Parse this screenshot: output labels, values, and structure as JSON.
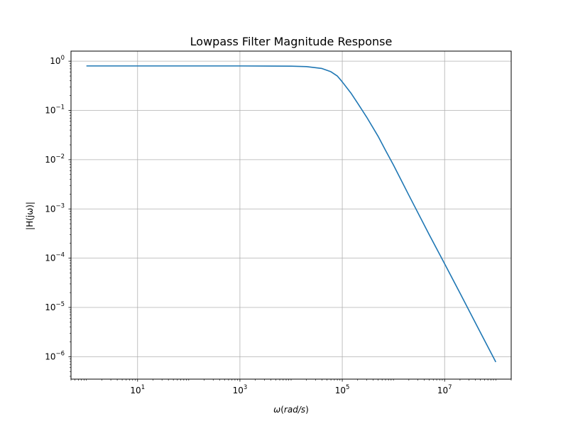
{
  "chart_data": {
    "type": "line",
    "title": "Lowpass Filter Magnitude Response",
    "xlabel": {
      "symbol": "ω",
      "open": "(",
      "unit": "rad/s",
      "close": ")"
    },
    "ylabel": {
      "text": "|H(jω)|"
    },
    "xscale": "log",
    "yscale": "log",
    "xlim": [
      0.5,
      200000000
    ],
    "ylim": [
      3.5e-07,
      1.6
    ],
    "grid": true,
    "x_ticks": [
      {
        "value": 10,
        "base": "10",
        "exp": "1"
      },
      {
        "value": 1000,
        "base": "10",
        "exp": "3"
      },
      {
        "value": 100000,
        "base": "10",
        "exp": "5"
      },
      {
        "value": 10000000,
        "base": "10",
        "exp": "7"
      }
    ],
    "y_ticks": [
      {
        "value": 1,
        "base": "10",
        "exp": "0"
      },
      {
        "value": 0.1,
        "base": "10",
        "exp": "−1"
      },
      {
        "value": 0.01,
        "base": "10",
        "exp": "−2"
      },
      {
        "value": 0.001,
        "base": "10",
        "exp": "−3"
      },
      {
        "value": 0.0001,
        "base": "10",
        "exp": "−4"
      },
      {
        "value": 1e-05,
        "base": "10",
        "exp": "−5"
      },
      {
        "value": 1e-06,
        "base": "10",
        "exp": "−6"
      }
    ],
    "series": [
      {
        "color": "#1f77b4",
        "x": [
          1,
          10,
          100,
          1000,
          10000,
          20000,
          40000,
          60000,
          80000,
          100000,
          150000,
          200000,
          300000,
          500000,
          700000,
          1000000,
          2000000,
          5000000,
          10000000,
          20000000,
          50000000,
          100000000
        ],
        "y": [
          0.8,
          0.8,
          0.8,
          0.8,
          0.793,
          0.775,
          0.71,
          0.61,
          0.5,
          0.38,
          0.22,
          0.14,
          0.073,
          0.03,
          0.0155,
          0.0078,
          0.0019,
          0.0003,
          7.7e-05,
          1.95e-05,
          3.1e-06,
          7.8e-07
        ]
      }
    ]
  }
}
